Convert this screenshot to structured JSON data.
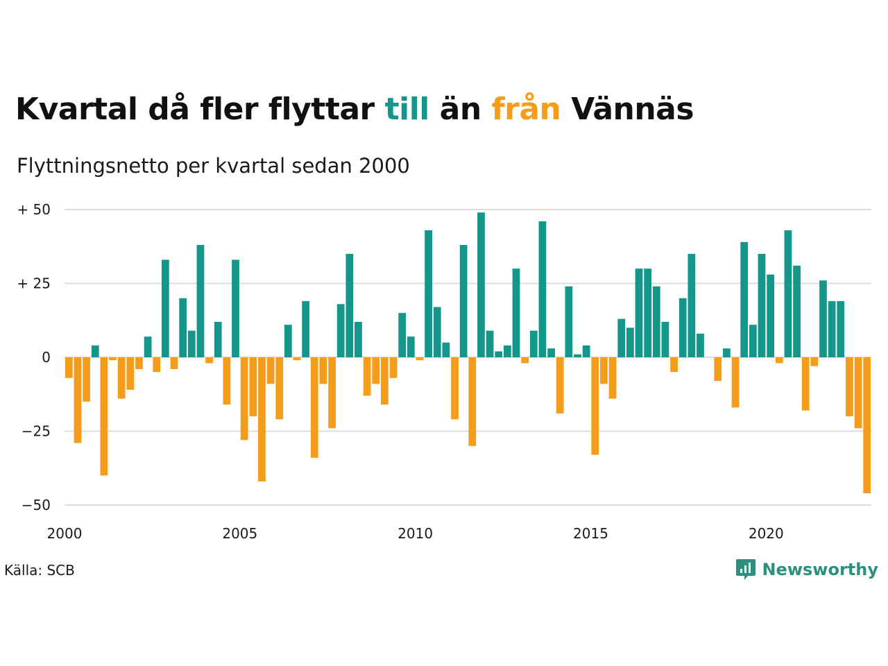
{
  "title": {
    "part1": "Kvartal då fler flyttar ",
    "pos_word": "till",
    "part2": " än ",
    "neg_word": "från",
    "part3": " Vännäs"
  },
  "subtitle": "Flyttningsnetto per kvartal sedan 2000",
  "source": "Källa: SCB",
  "brand": "Newsworthy",
  "colors": {
    "positive": "#15968a",
    "negative": "#f49c1b",
    "grid": "#dddddd",
    "brand": "#2e8f7e"
  },
  "chart_data": {
    "type": "bar",
    "title": "Kvartal då fler flyttar till än från Vännäs",
    "subtitle": "Flyttningsnetto per kvartal sedan 2000",
    "start_year": 2000,
    "periods_per_year": 4,
    "ylim": [
      -50,
      50
    ],
    "yticks": [
      {
        "value": 50,
        "label": "+ 50"
      },
      {
        "value": 25,
        "label": "+ 25"
      },
      {
        "value": 0,
        "label": "0"
      },
      {
        "value": -25,
        "label": "−25"
      },
      {
        "value": -50,
        "label": "−50"
      }
    ],
    "xticks": [
      "2000",
      "2005",
      "2010",
      "2015",
      "2020"
    ],
    "grid": true,
    "values": [
      -7,
      -29,
      -15,
      4,
      -40,
      -1,
      -14,
      -11,
      -4,
      7,
      -5,
      33,
      -4,
      20,
      9,
      38,
      -2,
      12,
      -16,
      33,
      -28,
      -20,
      -42,
      -9,
      -21,
      11,
      -1,
      19,
      -34,
      -9,
      -24,
      18,
      35,
      12,
      -13,
      -9,
      -16,
      -7,
      15,
      7,
      -1,
      43,
      17,
      5,
      -21,
      38,
      -30,
      49,
      9,
      2,
      4,
      30,
      -2,
      9,
      46,
      3,
      -19,
      24,
      1,
      4,
      -33,
      -9,
      -14,
      13,
      10,
      30,
      30,
      24,
      12,
      -5,
      20,
      35,
      8,
      0,
      -8,
      3,
      -17,
      39,
      11,
      35,
      28,
      -2,
      43,
      31,
      -18,
      -3,
      26,
      19,
      19,
      -20,
      -24,
      -46
    ]
  }
}
